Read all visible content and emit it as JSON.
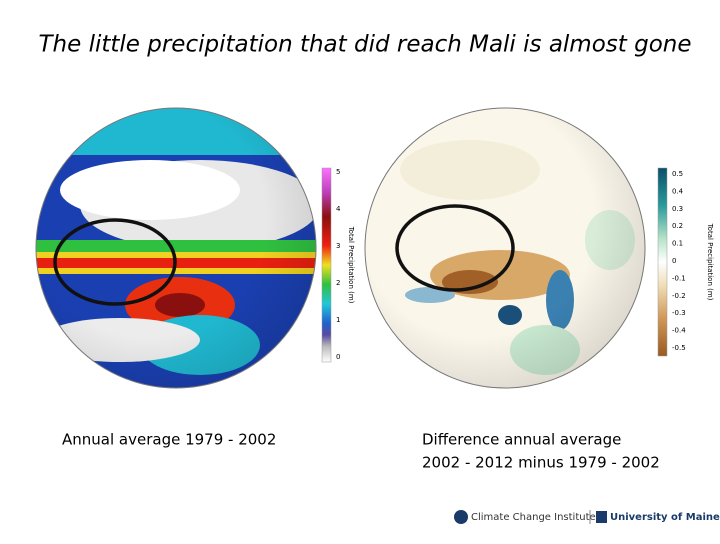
{
  "slide": {
    "title": "The little precipitation that did reach Mali is almost gone",
    "left": {
      "caption": "Annual average 1979 - 2002",
      "colorbar_label": "Total Precipitation (m)",
      "ticks": [
        5,
        4,
        3,
        2,
        1,
        0
      ]
    },
    "right": {
      "caption_lines": [
        "Difference annual average",
        "2002 - 2012 minus 1979 - 2002"
      ],
      "colorbar_label": "Total Precipitation (m)",
      "ticks": [
        0.5,
        0.4,
        0.3,
        0.2,
        0.1,
        0,
        -0.1,
        -0.2,
        -0.3,
        -0.4,
        -0.5
      ]
    },
    "footer": {
      "institute": "Climate Change Institute",
      "university": "University of Maine"
    }
  }
}
